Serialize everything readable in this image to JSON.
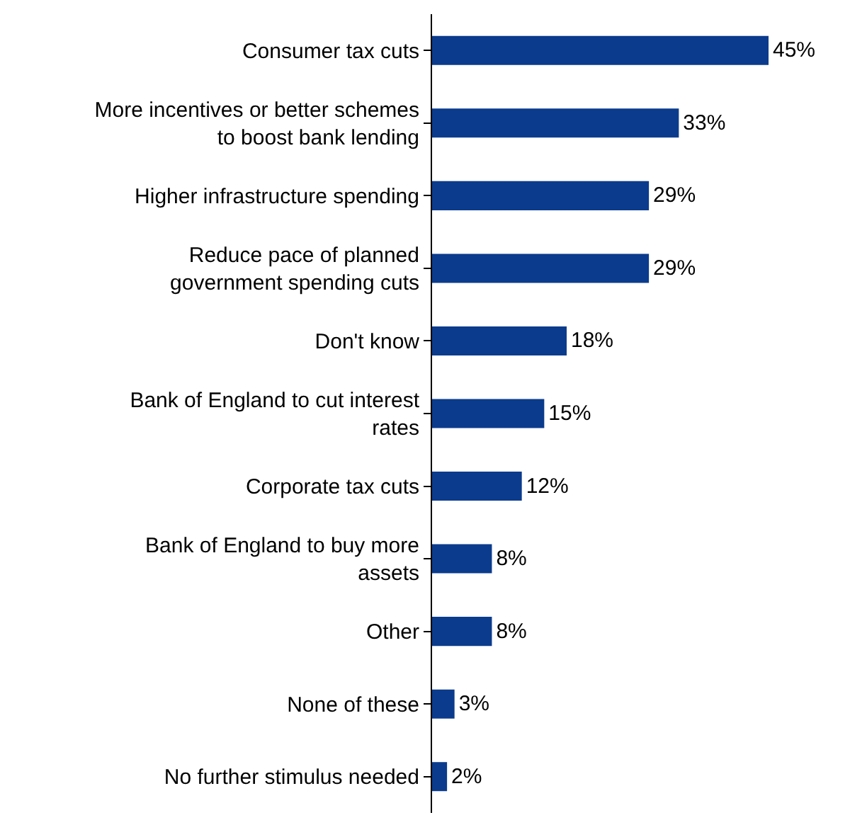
{
  "chart_data": {
    "type": "bar",
    "orientation": "horizontal",
    "categories": [
      "Consumer tax cuts",
      "More incentives or better schemes\nto boost bank lending",
      "Higher infrastructure spending",
      "Reduce pace of planned\ngovernment spending cuts",
      "Don't know",
      "Bank of England to cut interest\nrates",
      "Corporate tax cuts",
      "Bank of England to buy more\nassets",
      "Other",
      "None of these",
      "No further stimulus needed"
    ],
    "values": [
      45,
      33,
      29,
      29,
      18,
      15,
      12,
      8,
      8,
      3,
      2
    ],
    "value_labels": [
      "45%",
      "33%",
      "29%",
      "29%",
      "18%",
      "15%",
      "12%",
      "8%",
      "8%",
      "3%",
      "2%"
    ],
    "color": "#0b3b8c",
    "legend": false
  }
}
